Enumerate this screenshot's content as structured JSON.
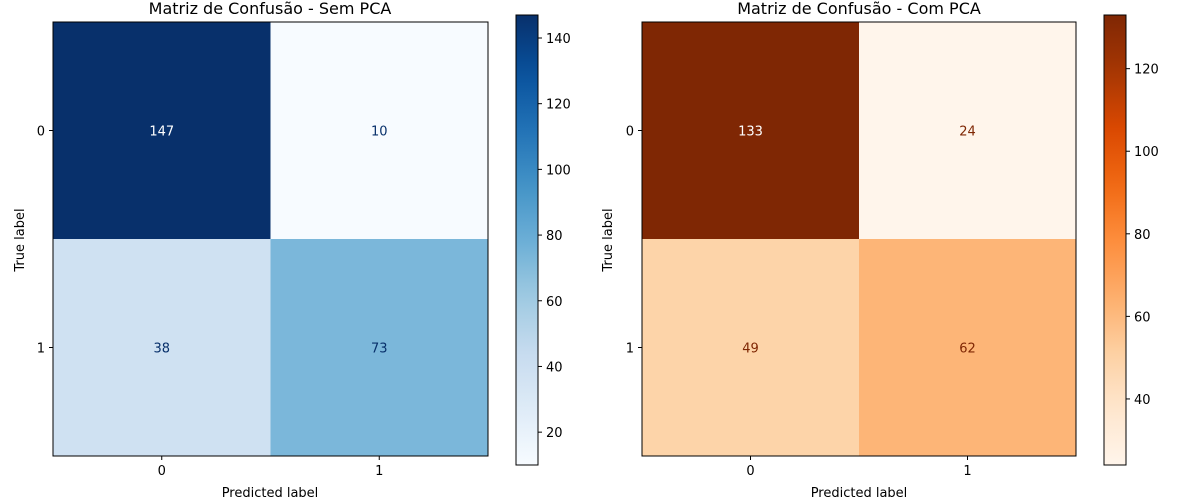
{
  "chart_data": [
    {
      "type": "heatmap",
      "title": "Matriz de Confusão - Sem PCA",
      "xlabel": "Predicted label",
      "ylabel": "True label",
      "x_categories": [
        "0",
        "1"
      ],
      "y_categories": [
        "0",
        "1"
      ],
      "values": [
        [
          147,
          10
        ],
        [
          38,
          73
        ]
      ],
      "colormap": "Blues",
      "color_low": "#f7fbff",
      "color_high": "#08306b",
      "text_on_dark": "#ffffff",
      "text_on_light": "#08306b",
      "colorbar": {
        "range": [
          10,
          147
        ],
        "ticks": [
          20,
          40,
          60,
          80,
          100,
          120,
          140
        ]
      },
      "grid": false
    },
    {
      "type": "heatmap",
      "title": "Matriz de Confusão - Com PCA",
      "xlabel": "Predicted label",
      "ylabel": "True label",
      "x_categories": [
        "0",
        "1"
      ],
      "y_categories": [
        "0",
        "1"
      ],
      "values": [
        [
          133,
          24
        ],
        [
          49,
          62
        ]
      ],
      "colormap": "Oranges",
      "color_low": "#fff5eb",
      "color_high": "#7f2704",
      "text_on_dark": "#ffffff",
      "text_on_light": "#7f2704",
      "colorbar": {
        "range": [
          24,
          133
        ],
        "ticks": [
          40,
          60,
          80,
          100,
          120
        ]
      },
      "grid": false
    }
  ]
}
